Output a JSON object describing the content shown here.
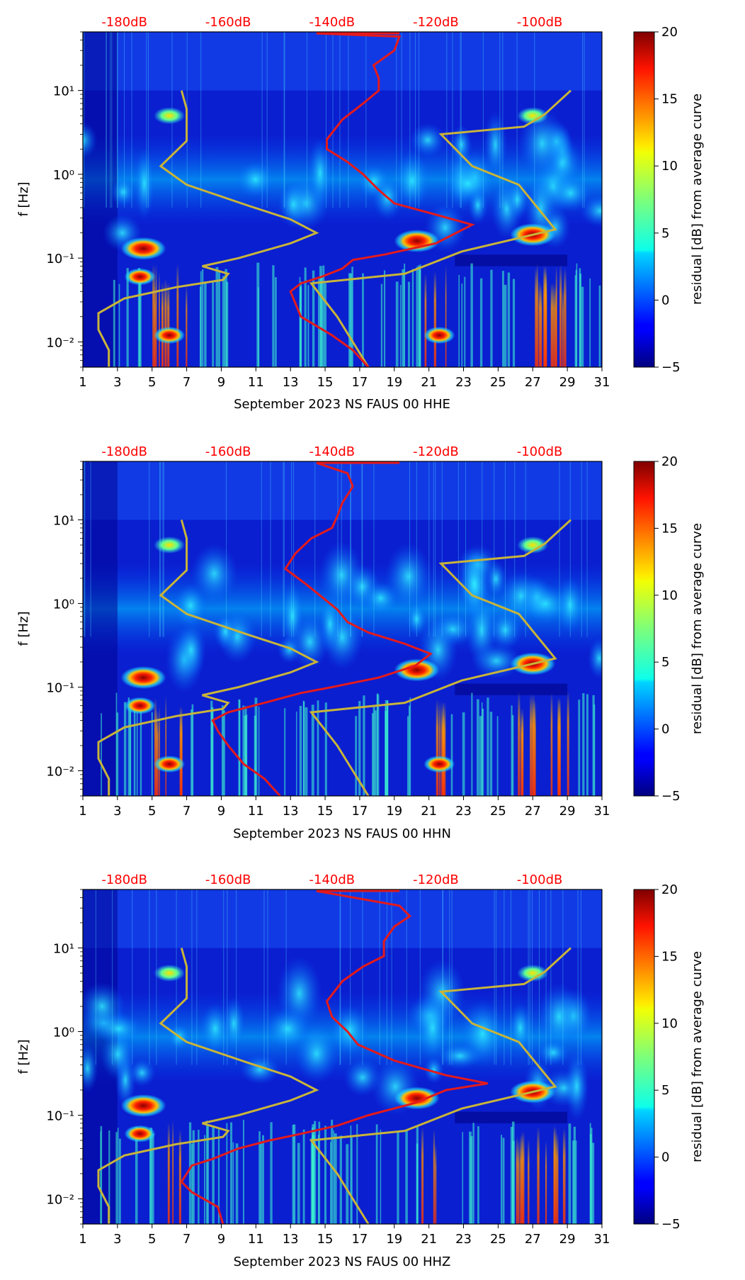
{
  "colors": {
    "psd_curve": "#e41a1c",
    "nlnm_nhnm_curve": "#c8b43a",
    "top_axis_text": "#ff0000"
  },
  "chart_data": [
    {
      "type": "heatmap",
      "channel": "HHE",
      "xlabel": "September 2023 NS FAUS 00 HHE",
      "ylabel": "f [Hz]",
      "x_ticks": [
        "1",
        "3",
        "5",
        "7",
        "9",
        "11",
        "13",
        "15",
        "17",
        "19",
        "21",
        "23",
        "25",
        "27",
        "29",
        "31"
      ],
      "x_range": [
        1,
        31
      ],
      "y_scale": "log",
      "y_range": [
        0.005,
        50
      ],
      "y_ticks": [
        {
          "value": 0.01,
          "label": "10⁻²"
        },
        {
          "value": 0.1,
          "label": "10⁻¹"
        },
        {
          "value": 1,
          "label": "10⁰"
        },
        {
          "value": 10,
          "label": "10¹"
        }
      ],
      "top_ticks": [
        {
          "value": -180,
          "label": "-180dB"
        },
        {
          "value": -160,
          "label": "-160dB"
        },
        {
          "value": -140,
          "label": "-140dB"
        },
        {
          "value": -120,
          "label": "-120dB"
        },
        {
          "value": -100,
          "label": "-100dB"
        }
      ],
      "top_range": [
        -188,
        -88
      ],
      "colorbar": {
        "label": "residual [dB] from average curve",
        "range": [
          -5,
          20
        ],
        "ticks": [
          "20",
          "15",
          "10",
          "5",
          "0",
          "−5"
        ]
      },
      "hotspots": [
        {
          "day": 4.5,
          "freq": 0.13,
          "value": 20
        },
        {
          "day": 4.3,
          "freq": 0.06,
          "value": 15
        },
        {
          "day": 20.3,
          "freq": 0.16,
          "value": 20
        },
        {
          "day": 27,
          "freq": 0.19,
          "value": 18
        },
        {
          "day": 6,
          "freq": 0.012,
          "value": 16
        },
        {
          "day": 21.6,
          "freq": 0.012,
          "value": 15
        },
        {
          "day": 6,
          "freq": 5,
          "value": 8
        },
        {
          "day": 27,
          "freq": 5,
          "value": 8
        }
      ],
      "psd_curve": {
        "name": "PSD (dB)",
        "points": [
          [
            -133,
            0.005
          ],
          [
            -136,
            0.008
          ],
          [
            -140,
            0.012
          ],
          [
            -146,
            0.02
          ],
          [
            -148,
            0.04
          ],
          [
            -146,
            0.05
          ],
          [
            -142,
            0.06
          ],
          [
            -138,
            0.075
          ],
          [
            -136,
            0.095
          ],
          [
            -130,
            0.11
          ],
          [
            -120,
            0.15
          ],
          [
            -113,
            0.25
          ],
          [
            -120,
            0.33
          ],
          [
            -128,
            0.45
          ],
          [
            -131,
            0.65
          ],
          [
            -134,
            1.0
          ],
          [
            -137,
            1.4
          ],
          [
            -141,
            2.0
          ],
          [
            -141,
            2.6
          ],
          [
            -138,
            4.5
          ],
          [
            -134,
            7
          ],
          [
            -131,
            10
          ],
          [
            -131,
            14
          ],
          [
            -132,
            20
          ],
          [
            -128,
            30
          ],
          [
            -127,
            44
          ],
          [
            -143,
            48
          ]
        ]
      },
      "model_curves": {
        "name": "NLNM / NHNM",
        "nlnm": [
          [
            -183,
            0.005
          ],
          [
            -183,
            0.008
          ],
          [
            -185,
            0.014
          ],
          [
            -185,
            0.022
          ],
          [
            -180,
            0.033
          ],
          [
            -170,
            0.045
          ],
          [
            -161,
            0.055
          ],
          [
            -160,
            0.065
          ],
          [
            -165,
            0.08
          ],
          [
            -158,
            0.1
          ],
          [
            -148,
            0.15
          ],
          [
            -143,
            0.2
          ],
          [
            -148,
            0.29
          ],
          [
            -156,
            0.42
          ],
          [
            -168,
            0.75
          ],
          [
            -173,
            1.25
          ],
          [
            -168,
            2.5
          ],
          [
            -168,
            6
          ],
          [
            -169,
            10
          ]
        ],
        "nhnm": [
          [
            -133,
            0.005
          ],
          [
            -139,
            0.02
          ],
          [
            -144,
            0.05
          ],
          [
            -126,
            0.065
          ],
          [
            -115,
            0.12
          ],
          [
            -97,
            0.22
          ],
          [
            -104,
            0.75
          ],
          [
            -113,
            1.25
          ],
          [
            -119,
            3
          ],
          [
            -103,
            3.7
          ],
          [
            -99,
            5.2
          ],
          [
            -94,
            10
          ]
        ]
      }
    },
    {
      "type": "heatmap",
      "channel": "HHN",
      "xlabel": "September 2023 NS FAUS 00 HHN",
      "ylabel": "f [Hz]",
      "x_ticks": [
        "1",
        "3",
        "5",
        "7",
        "9",
        "11",
        "13",
        "15",
        "17",
        "19",
        "21",
        "23",
        "25",
        "27",
        "29",
        "31"
      ],
      "x_range": [
        1,
        31
      ],
      "y_scale": "log",
      "y_range": [
        0.005,
        50
      ],
      "y_ticks": [
        {
          "value": 0.01,
          "label": "10⁻²"
        },
        {
          "value": 0.1,
          "label": "10⁻¹"
        },
        {
          "value": 1,
          "label": "10⁰"
        },
        {
          "value": 10,
          "label": "10¹"
        }
      ],
      "top_ticks": [
        {
          "value": -180,
          "label": "-180dB"
        },
        {
          "value": -160,
          "label": "-160dB"
        },
        {
          "value": -140,
          "label": "-140dB"
        },
        {
          "value": -120,
          "label": "-120dB"
        },
        {
          "value": -100,
          "label": "-100dB"
        }
      ],
      "top_range": [
        -188,
        -88
      ],
      "colorbar": {
        "label": "residual [dB] from average curve",
        "range": [
          -5,
          20
        ],
        "ticks": [
          "20",
          "15",
          "10",
          "5",
          "0",
          "−5"
        ]
      },
      "hotspots": [
        {
          "day": 4.5,
          "freq": 0.13,
          "value": 20
        },
        {
          "day": 4.3,
          "freq": 0.06,
          "value": 15
        },
        {
          "day": 20.3,
          "freq": 0.16,
          "value": 20
        },
        {
          "day": 27,
          "freq": 0.19,
          "value": 18
        },
        {
          "day": 6,
          "freq": 0.012,
          "value": 16
        },
        {
          "day": 21.6,
          "freq": 0.012,
          "value": 15
        },
        {
          "day": 6,
          "freq": 5,
          "value": 8
        },
        {
          "day": 27,
          "freq": 5,
          "value": 8
        }
      ],
      "psd_curve": {
        "name": "PSD (dB)",
        "points": [
          [
            -150,
            0.005
          ],
          [
            -153,
            0.008
          ],
          [
            -157,
            0.012
          ],
          [
            -160,
            0.02
          ],
          [
            -162,
            0.03
          ],
          [
            -163,
            0.04
          ],
          [
            -160,
            0.05
          ],
          [
            -153,
            0.065
          ],
          [
            -146,
            0.085
          ],
          [
            -140,
            0.1
          ],
          [
            -131,
            0.13
          ],
          [
            -124,
            0.18
          ],
          [
            -121,
            0.25
          ],
          [
            -126,
            0.33
          ],
          [
            -133,
            0.45
          ],
          [
            -137,
            0.6
          ],
          [
            -139,
            0.85
          ],
          [
            -142,
            1.2
          ],
          [
            -145,
            1.7
          ],
          [
            -149,
            2.6
          ],
          [
            -147,
            4
          ],
          [
            -144,
            6
          ],
          [
            -140,
            8
          ],
          [
            -139,
            11
          ],
          [
            -138,
            16
          ],
          [
            -136,
            25
          ],
          [
            -137,
            36
          ],
          [
            -143,
            48
          ]
        ]
      },
      "model_curves": {
        "name": "NLNM / NHNM",
        "nlnm": [
          [
            -183,
            0.005
          ],
          [
            -183,
            0.008
          ],
          [
            -185,
            0.014
          ],
          [
            -185,
            0.022
          ],
          [
            -180,
            0.033
          ],
          [
            -170,
            0.045
          ],
          [
            -161,
            0.055
          ],
          [
            -160,
            0.065
          ],
          [
            -165,
            0.08
          ],
          [
            -158,
            0.1
          ],
          [
            -148,
            0.15
          ],
          [
            -143,
            0.2
          ],
          [
            -148,
            0.29
          ],
          [
            -156,
            0.42
          ],
          [
            -168,
            0.75
          ],
          [
            -173,
            1.25
          ],
          [
            -168,
            2.5
          ],
          [
            -168,
            6
          ],
          [
            -169,
            10
          ]
        ],
        "nhnm": [
          [
            -133,
            0.005
          ],
          [
            -139,
            0.02
          ],
          [
            -144,
            0.05
          ],
          [
            -126,
            0.065
          ],
          [
            -115,
            0.12
          ],
          [
            -97,
            0.22
          ],
          [
            -104,
            0.75
          ],
          [
            -113,
            1.25
          ],
          [
            -119,
            3
          ],
          [
            -103,
            3.7
          ],
          [
            -99,
            5.2
          ],
          [
            -94,
            10
          ]
        ]
      }
    },
    {
      "type": "heatmap",
      "channel": "HHZ",
      "xlabel": "September 2023 NS FAUS 00 HHZ",
      "ylabel": "f [Hz]",
      "x_ticks": [
        "1",
        "3",
        "5",
        "7",
        "9",
        "11",
        "13",
        "15",
        "17",
        "19",
        "21",
        "23",
        "25",
        "27",
        "29",
        "31"
      ],
      "x_range": [
        1,
        31
      ],
      "y_scale": "log",
      "y_range": [
        0.005,
        50
      ],
      "y_ticks": [
        {
          "value": 0.01,
          "label": "10⁻²"
        },
        {
          "value": 0.1,
          "label": "10⁻¹"
        },
        {
          "value": 1,
          "label": "10⁰"
        },
        {
          "value": 10,
          "label": "10¹"
        }
      ],
      "top_ticks": [
        {
          "value": -180,
          "label": "-180dB"
        },
        {
          "value": -160,
          "label": "-160dB"
        },
        {
          "value": -140,
          "label": "-140dB"
        },
        {
          "value": -120,
          "label": "-120dB"
        },
        {
          "value": -100,
          "label": "-100dB"
        }
      ],
      "top_range": [
        -188,
        -88
      ],
      "colorbar": {
        "label": "residual [dB] from average curve",
        "range": [
          -5,
          20
        ],
        "ticks": [
          "20",
          "15",
          "10",
          "5",
          "0",
          "−5"
        ]
      },
      "hotspots": [
        {
          "day": 4.5,
          "freq": 0.13,
          "value": 20
        },
        {
          "day": 4.3,
          "freq": 0.06,
          "value": 15
        },
        {
          "day": 20.3,
          "freq": 0.16,
          "value": 20
        },
        {
          "day": 27,
          "freq": 0.19,
          "value": 18
        },
        {
          "day": 6,
          "freq": 5,
          "value": 8
        },
        {
          "day": 27,
          "freq": 5,
          "value": 8
        }
      ],
      "psd_curve": {
        "name": "PSD (dB)",
        "points": [
          [
            -161,
            0.005
          ],
          [
            -162,
            0.008
          ],
          [
            -167,
            0.012
          ],
          [
            -169,
            0.016
          ],
          [
            -168,
            0.02
          ],
          [
            -167,
            0.025
          ],
          [
            -163,
            0.03
          ],
          [
            -158,
            0.04
          ],
          [
            -152,
            0.05
          ],
          [
            -146,
            0.06
          ],
          [
            -139,
            0.075
          ],
          [
            -133,
            0.1
          ],
          [
            -124,
            0.14
          ],
          [
            -118,
            0.2
          ],
          [
            -110,
            0.24
          ],
          [
            -118,
            0.3
          ],
          [
            -128,
            0.45
          ],
          [
            -135,
            0.7
          ],
          [
            -137,
            1.0
          ],
          [
            -140,
            1.5
          ],
          [
            -141,
            2.3
          ],
          [
            -138,
            4
          ],
          [
            -134,
            6
          ],
          [
            -130,
            8
          ],
          [
            -130,
            12
          ],
          [
            -128,
            18
          ],
          [
            -125,
            24
          ],
          [
            -127,
            32
          ],
          [
            -143,
            48
          ]
        ]
      },
      "model_curves": {
        "name": "NLNM / NHNM",
        "nlnm": [
          [
            -183,
            0.005
          ],
          [
            -183,
            0.008
          ],
          [
            -185,
            0.014
          ],
          [
            -185,
            0.022
          ],
          [
            -180,
            0.033
          ],
          [
            -170,
            0.045
          ],
          [
            -161,
            0.055
          ],
          [
            -160,
            0.065
          ],
          [
            -165,
            0.08
          ],
          [
            -158,
            0.1
          ],
          [
            -148,
            0.15
          ],
          [
            -143,
            0.2
          ],
          [
            -148,
            0.29
          ],
          [
            -156,
            0.42
          ],
          [
            -168,
            0.75
          ],
          [
            -173,
            1.25
          ],
          [
            -168,
            2.5
          ],
          [
            -168,
            6
          ],
          [
            -169,
            10
          ]
        ],
        "nhnm": [
          [
            -133,
            0.005
          ],
          [
            -139,
            0.02
          ],
          [
            -144,
            0.05
          ],
          [
            -126,
            0.065
          ],
          [
            -115,
            0.12
          ],
          [
            -97,
            0.22
          ],
          [
            -104,
            0.75
          ],
          [
            -113,
            1.25
          ],
          [
            -119,
            3
          ],
          [
            -103,
            3.7
          ],
          [
            -99,
            5.2
          ],
          [
            -94,
            10
          ]
        ]
      }
    }
  ]
}
